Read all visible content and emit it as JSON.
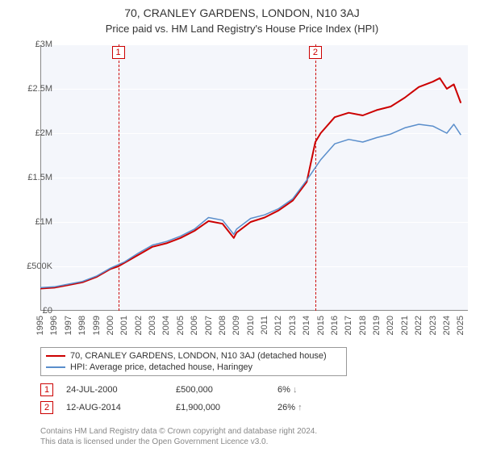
{
  "title": "70, CRANLEY GARDENS, LONDON, N10 3AJ",
  "subtitle": "Price paid vs. HM Land Registry's House Price Index (HPI)",
  "chart": {
    "type": "line",
    "background_color": "#f4f6fb",
    "grid_color": "#ffffff",
    "axis_color": "#888888",
    "xlim": [
      1995,
      2025.5
    ],
    "ylim": [
      0,
      3000000
    ],
    "ytick_step": 500000,
    "ytick_labels": [
      "£0",
      "£500K",
      "£1M",
      "£1.5M",
      "£2M",
      "£2.5M",
      "£3M"
    ],
    "xticks": [
      1995,
      1996,
      1997,
      1998,
      1999,
      2000,
      2001,
      2002,
      2003,
      2004,
      2005,
      2006,
      2007,
      2008,
      2009,
      2010,
      2011,
      2012,
      2013,
      2014,
      2015,
      2016,
      2017,
      2018,
      2019,
      2020,
      2021,
      2022,
      2023,
      2024,
      2025
    ],
    "series": [
      {
        "name": "70, CRANLEY GARDENS, LONDON, N10 3AJ (detached house)",
        "color": "#cc0000",
        "line_width": 2,
        "x": [
          1995,
          1996,
          1997,
          1998,
          1999,
          2000,
          2000.56,
          2001,
          2002,
          2003,
          2004,
          2005,
          2006,
          2007,
          2008,
          2008.8,
          2009,
          2010,
          2011,
          2012,
          2013,
          2014,
          2014.62,
          2015,
          2016,
          2017,
          2018,
          2019,
          2020,
          2021,
          2022,
          2023,
          2023.5,
          2024,
          2024.5,
          2025
        ],
        "y": [
          250000,
          260000,
          290000,
          320000,
          380000,
          470000,
          500000,
          540000,
          630000,
          720000,
          760000,
          820000,
          900000,
          1010000,
          980000,
          820000,
          880000,
          1000000,
          1050000,
          1130000,
          1240000,
          1450000,
          1900000,
          2000000,
          2180000,
          2230000,
          2200000,
          2260000,
          2300000,
          2400000,
          2520000,
          2580000,
          2620000,
          2500000,
          2550000,
          2340000
        ]
      },
      {
        "name": "HPI: Average price, detached house, Haringey",
        "color": "#5a8ecb",
        "line_width": 1.5,
        "x": [
          1995,
          1996,
          1997,
          1998,
          1999,
          2000,
          2001,
          2002,
          2003,
          2004,
          2005,
          2006,
          2007,
          2008,
          2008.8,
          2009,
          2010,
          2011,
          2012,
          2013,
          2014,
          2015,
          2016,
          2017,
          2018,
          2019,
          2020,
          2021,
          2022,
          2023,
          2024,
          2024.5,
          2025
        ],
        "y": [
          260000,
          270000,
          300000,
          330000,
          390000,
          480000,
          550000,
          650000,
          740000,
          780000,
          840000,
          920000,
          1050000,
          1020000,
          860000,
          920000,
          1040000,
          1080000,
          1150000,
          1260000,
          1470000,
          1700000,
          1880000,
          1930000,
          1900000,
          1950000,
          1990000,
          2060000,
          2100000,
          2080000,
          2000000,
          2100000,
          1980000
        ]
      }
    ],
    "markers": [
      {
        "label": "1",
        "x": 2000.56,
        "color": "#cc0000"
      },
      {
        "label": "2",
        "x": 2014.62,
        "color": "#cc0000"
      }
    ]
  },
  "legend": {
    "items": [
      {
        "color": "#cc0000",
        "label": "70, CRANLEY GARDENS, LONDON, N10 3AJ (detached house)"
      },
      {
        "color": "#5a8ecb",
        "label": "HPI: Average price, detached house, Haringey"
      }
    ]
  },
  "transactions": [
    {
      "marker": "1",
      "date": "24-JUL-2000",
      "price": "£500,000",
      "pct": "6%",
      "arrow": "↓",
      "arrow_color": "#888888"
    },
    {
      "marker": "2",
      "date": "12-AUG-2014",
      "price": "£1,900,000",
      "pct": "26%",
      "arrow": "↑",
      "arrow_color": "#888888"
    }
  ],
  "footer": {
    "line1": "Contains HM Land Registry data © Crown copyright and database right 2024.",
    "line2": "This data is licensed under the Open Government Licence v3.0."
  }
}
